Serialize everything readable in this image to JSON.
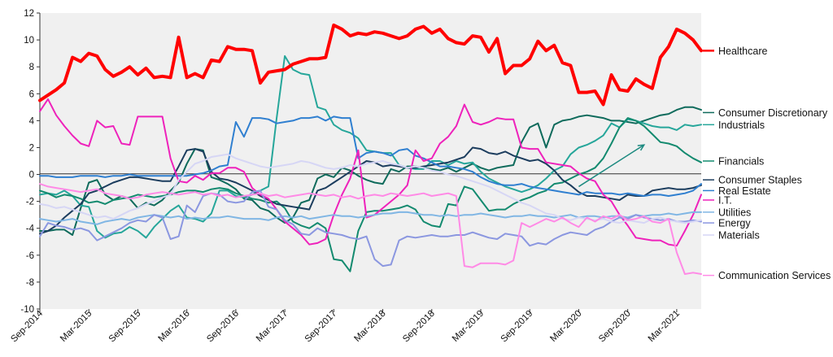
{
  "chart_data": {
    "type": "line",
    "title": "",
    "xlabel": "",
    "ylabel": "",
    "ylim": [
      -10,
      12
    ],
    "yticks": [
      -10,
      -8,
      -6,
      -4,
      -2,
      0,
      2,
      4,
      6,
      8,
      10,
      12
    ],
    "xtick_labels": [
      "Sep-2014",
      "Mar-2015",
      "Sep-2015",
      "Mar-2016",
      "Sep-2016",
      "Mar-2017",
      "Sep-2017",
      "Mar-2018",
      "Sep-2018",
      "Mar-2019",
      "Sep-2019",
      "Mar-2020",
      "Sep-2020",
      "Mar-2021"
    ],
    "x_start": "2014-09",
    "grid": false,
    "legend_position": "right",
    "background_color": "#f0f0f0",
    "annotation": {
      "type": "arrow",
      "from": [
        "2020-03",
        -0.9
      ],
      "to": [
        "2020-11",
        2.2
      ],
      "color": "#1d8a80"
    },
    "series": [
      {
        "name": "Healthcare",
        "color": "#ff0000",
        "width": 4,
        "label_y": 9.2,
        "values": [
          5.5,
          5.9,
          6.3,
          6.8,
          8.7,
          8.4,
          9.0,
          8.8,
          7.8,
          7.3,
          7.6,
          8.0,
          7.4,
          7.9,
          7.2,
          7.3,
          7.2,
          10.2,
          7.2,
          7.5,
          7.2,
          8.5,
          8.4,
          9.5,
          9.3,
          9.3,
          9.2,
          6.8,
          7.6,
          7.7,
          7.8,
          8.2,
          8.4,
          8.6,
          8.6,
          8.7,
          11.1,
          10.8,
          10.3,
          10.5,
          10.4,
          10.6,
          10.5,
          10.3,
          10.1,
          10.3,
          10.8,
          11.0,
          10.5,
          10.8,
          10.1,
          9.8,
          9.7,
          10.3,
          10.2,
          9.1,
          10.1,
          7.5,
          8.1,
          8.1,
          8.6,
          9.9,
          9.2,
          9.6,
          8.3,
          8.1,
          6.1,
          6.1,
          6.2,
          5.2,
          7.4,
          6.3,
          6.2,
          7.1,
          6.7,
          6.4,
          8.7,
          9.5,
          10.8,
          10.5,
          10.0,
          9.2
        ]
      },
      {
        "name": "Consumer Discretionary",
        "color": "#0f6b5c",
        "width": 2,
        "label_y": 4.6,
        "values": [
          -4.2,
          -4.2,
          -4.1,
          -4.1,
          -4.5,
          -2.5,
          -0.6,
          -0.4,
          -1.5,
          -1.9,
          -1.6,
          -1.8,
          -2.5,
          -2.1,
          -2.3,
          -1.9,
          -1.2,
          -0.6,
          0.8,
          1.9,
          1.8,
          -0.2,
          -0.4,
          -0.7,
          -1.1,
          -1.8,
          -1.9,
          -2.5,
          -2.7,
          -3.2,
          -3.6,
          -3.2,
          -2.1,
          -1.9,
          -0.3,
          0.0,
          -0.2,
          0.5,
          0.3,
          -0.1,
          -0.4,
          -0.6,
          -0.7,
          0.4,
          0.2,
          0.6,
          0.6,
          0.5,
          0.4,
          0.3,
          0.5,
          0.2,
          0.5,
          0.8,
          0.5,
          0.3,
          0.5,
          0.6,
          0.7,
          2.4,
          3.5,
          3.8,
          2.0,
          3.7,
          4.0,
          4.1,
          4.3,
          4.4,
          4.3,
          4.2,
          4.0,
          4.0,
          3.9,
          3.8,
          4.0,
          4.2,
          4.4,
          4.5,
          4.8,
          5.0,
          5.0,
          4.8
        ]
      },
      {
        "name": "Industrials",
        "color": "#26a69a",
        "width": 2,
        "label_y": 3.7,
        "values": [
          -1.5,
          -1.4,
          -1.5,
          -1.2,
          -1.6,
          -2.3,
          -2.4,
          -4.2,
          -4.7,
          -4.4,
          -4.3,
          -3.9,
          -4.2,
          -4.7,
          -3.9,
          -3.3,
          -2.7,
          -2.3,
          -3.2,
          -3.3,
          -3.5,
          -2.9,
          -1.2,
          -1.2,
          -1.6,
          -1.7,
          -1.5,
          -1.2,
          -0.9,
          4.2,
          8.8,
          7.8,
          7.5,
          7.4,
          5.0,
          4.8,
          3.7,
          3.3,
          3.1,
          2.7,
          1.8,
          1.7,
          1.6,
          1.6,
          0.7,
          0.5,
          0.4,
          0.4,
          1.0,
          1.0,
          0.7,
          1.0,
          0.8,
          0.9,
          0.2,
          -0.3,
          -0.6,
          -0.9,
          -1.1,
          -1.3,
          -1.1,
          -0.8,
          -0.3,
          0.3,
          0.6,
          1.5,
          2.0,
          2.2,
          2.5,
          2.9,
          3.8,
          3.5,
          4.1,
          4.0,
          3.8,
          3.6,
          3.5,
          3.5,
          3.3,
          3.7,
          3.6,
          3.7
        ]
      },
      {
        "name": "Financials",
        "color": "#138a6f",
        "width": 2,
        "label_y": 1.0,
        "values": [
          -1.2,
          -1.4,
          -1.7,
          -1.5,
          -1.6,
          -1.8,
          -2.1,
          -2.0,
          -2.2,
          -1.9,
          -1.8,
          -1.7,
          -1.5,
          -1.6,
          -1.7,
          -1.6,
          -1.5,
          -1.3,
          -1.2,
          -1.2,
          -1.3,
          -1.1,
          -1.0,
          -1.1,
          -1.4,
          -1.6,
          -1.8,
          -1.9,
          -2.1,
          -2.0,
          -2.5,
          -3.5,
          -3.8,
          -4.0,
          -3.6,
          -4.0,
          -6.3,
          -6.4,
          -7.2,
          -4.2,
          -2.8,
          -2.7,
          -2.7,
          -2.6,
          -2.5,
          -2.3,
          -2.6,
          -3.5,
          -3.8,
          -3.9,
          -2.2,
          -2.3,
          -0.9,
          -1.1,
          -1.9,
          -2.7,
          -2.6,
          -2.6,
          -2.2,
          -1.9,
          -1.7,
          -1.4,
          -1.2,
          -0.7,
          -0.6,
          -0.3,
          0.0,
          0.2,
          0.5,
          1.2,
          2.3,
          3.5,
          4.2,
          4.0,
          3.6,
          3.0,
          2.4,
          2.3,
          2.1,
          1.6,
          1.2,
          0.9
        ]
      },
      {
        "name": "Consumer Staples",
        "color": "#1c3d5e",
        "width": 2,
        "label_y": -0.4,
        "values": [
          -4.4,
          -4.2,
          -3.8,
          -3.2,
          -2.7,
          -2.2,
          -1.4,
          -1.2,
          -0.9,
          -0.6,
          -0.4,
          -0.2,
          -0.2,
          -0.3,
          -0.4,
          -0.5,
          -0.5,
          0.6,
          1.8,
          1.9,
          1.7,
          0.2,
          -0.3,
          -0.4,
          -0.6,
          -0.9,
          -1.2,
          -1.6,
          -1.9,
          -2.2,
          -2.3,
          -2.4,
          -2.5,
          -2.6,
          -1.2,
          -1.0,
          -0.6,
          -0.2,
          0.2,
          0.6,
          1.0,
          0.9,
          0.6,
          0.7,
          0.6,
          0.5,
          0.5,
          0.6,
          0.7,
          0.8,
          0.9,
          1.1,
          1.3,
          2.0,
          1.9,
          1.6,
          1.5,
          1.7,
          1.4,
          1.2,
          1.0,
          1.1,
          0.8,
          0.3,
          -0.4,
          -0.8,
          -1.3,
          -1.6,
          -1.6,
          -1.7,
          -1.8,
          -1.9,
          -1.5,
          -1.6,
          -1.6,
          -1.2,
          -1.1,
          -1.0,
          -1.1,
          -1.1,
          -1.0,
          -0.8
        ]
      },
      {
        "name": "Real Estate",
        "color": "#2f7fd0",
        "width": 2,
        "label_y": -1.2,
        "values": [
          -0.1,
          -0.1,
          -0.2,
          -0.2,
          -0.2,
          -0.1,
          -0.1,
          -0.1,
          -0.2,
          -0.1,
          -0.1,
          0.0,
          -0.1,
          -0.1,
          -0.1,
          -0.1,
          -0.1,
          -0.1,
          -0.1,
          0.0,
          0.1,
          0.3,
          0.6,
          0.7,
          3.9,
          2.8,
          4.2,
          4.2,
          4.1,
          3.8,
          3.9,
          4.0,
          4.2,
          4.2,
          4.3,
          4.0,
          4.3,
          4.2,
          4.2,
          1.2,
          1.6,
          1.7,
          1.6,
          1.4,
          1.8,
          1.9,
          1.4,
          1.2,
          0.9,
          0.6,
          0.6,
          0.5,
          0.4,
          0.2,
          -0.2,
          -0.5,
          -0.7,
          -0.8,
          -0.8,
          -0.7,
          -0.9,
          -1.0,
          -1.1,
          -1.2,
          -1.3,
          -1.4,
          -1.5,
          -1.3,
          -1.4,
          -1.4,
          -1.4,
          -1.5,
          -1.4,
          -1.5,
          -1.6,
          -1.5,
          -1.5,
          -1.6,
          -1.5,
          -1.4,
          -1.2,
          -0.7
        ]
      },
      {
        "name": "I.T.",
        "color": "#ee22bb",
        "width": 2,
        "label_y": -1.9,
        "values": [
          4.7,
          5.6,
          4.4,
          3.6,
          2.9,
          2.3,
          2.1,
          4.0,
          3.5,
          3.6,
          2.3,
          2.2,
          4.3,
          4.3,
          4.3,
          4.3,
          1.2,
          -0.5,
          -0.6,
          -0.1,
          -0.4,
          0.1,
          0.1,
          0.5,
          0.5,
          0.2,
          -1.0,
          -1.5,
          -1.8,
          -2.6,
          -3.5,
          -4.0,
          -4.5,
          -5.2,
          -5.1,
          -4.8,
          -3.0,
          -1.5,
          -0.3,
          1.8,
          -3.2,
          -3.0,
          -2.5,
          -2.0,
          -1.5,
          -0.8,
          1.8,
          1.0,
          1.2,
          2.3,
          2.8,
          3.6,
          5.2,
          3.9,
          3.7,
          3.9,
          4.2,
          4.1,
          4.1,
          2.0,
          1.9,
          1.9,
          0.9,
          0.8,
          0.7,
          0.6,
          0.1,
          -0.3,
          -0.5,
          -1.5,
          -2.0,
          -3.0,
          -3.8,
          -4.7,
          -4.8,
          -4.9,
          -4.9,
          -5.2,
          -5.3,
          -4.2,
          -3.0,
          -1.5
        ]
      },
      {
        "name": "Utilities",
        "color": "#80b6e4",
        "width": 2,
        "label_y": -2.8,
        "values": [
          -3.3,
          -3.4,
          -3.5,
          -3.4,
          -3.3,
          -3.5,
          -3.6,
          -3.7,
          -3.5,
          -3.4,
          -3.3,
          -3.4,
          -3.2,
          -3.1,
          -3.0,
          -3.1,
          -3.2,
          -3.1,
          -3.3,
          -3.2,
          -3.3,
          -3.2,
          -3.2,
          -3.1,
          -3.2,
          -3.3,
          -3.3,
          -3.3,
          -3.4,
          -3.2,
          -3.1,
          -3.2,
          -3.1,
          -3.3,
          -3.2,
          -3.1,
          -3.0,
          -3.1,
          -3.1,
          -3.2,
          -3.1,
          -3.0,
          -2.9,
          -2.9,
          -2.8,
          -2.8,
          -2.9,
          -3.0,
          -3.0,
          -3.1,
          -3.0,
          -3.1,
          -3.0,
          -3.0,
          -2.9,
          -3.0,
          -3.1,
          -3.2,
          -3.1,
          -3.1,
          -3.0,
          -3.1,
          -3.1,
          -3.2,
          -3.1,
          -3.0,
          -3.2,
          -3.1,
          -3.1,
          -3.2,
          -3.1,
          -3.1,
          -3.2,
          -3.0,
          -3.1,
          -3.0,
          -3.0,
          -2.9,
          -3.0,
          -2.9,
          -2.8,
          -2.8
        ]
      },
      {
        "name": "Energy",
        "color": "#8b97e0",
        "width": 2,
        "label_y": -3.6,
        "values": [
          -4.6,
          -3.6,
          -3.8,
          -3.9,
          -4.1,
          -4.0,
          -4.2,
          -4.9,
          -4.6,
          -4.3,
          -4.0,
          -3.6,
          -3.4,
          -3.5,
          -3.0,
          -3.2,
          -4.8,
          -4.6,
          -2.3,
          -2.8,
          -1.6,
          -1.4,
          -1.5,
          -2.0,
          -2.1,
          -2.0,
          -1.3,
          -1.2,
          -2.4,
          -2.6,
          -3.4,
          -3.7,
          -4.4,
          -4.5,
          -4.0,
          -4.3,
          -4.4,
          -4.5,
          -4.7,
          -4.8,
          -4.6,
          -6.3,
          -6.8,
          -6.7,
          -4.9,
          -4.6,
          -4.7,
          -4.6,
          -4.5,
          -4.6,
          -4.6,
          -4.5,
          -4.5,
          -4.3,
          -4.5,
          -4.7,
          -4.8,
          -4.4,
          -4.5,
          -4.6,
          -5.3,
          -5.1,
          -5.2,
          -4.8,
          -4.5,
          -4.3,
          -4.4,
          -4.5,
          -4.1,
          -3.9,
          -3.5,
          -3.2,
          -3.3,
          -3.0,
          -3.2,
          -3.3,
          -3.4,
          -3.3,
          -3.5,
          -3.5,
          -3.4,
          -3.5
        ]
      },
      {
        "name": "Materials",
        "color": "#d6d6f5",
        "width": 2,
        "label_y": -4.5,
        "values": [
          -2.2,
          -2.3,
          -2.5,
          -2.4,
          -2.6,
          -2.8,
          -3.0,
          -3.2,
          -3.1,
          -3.3,
          -3.0,
          -2.7,
          -2.5,
          -2.2,
          -2.0,
          -1.7,
          -1.5,
          -0.4,
          0.2,
          0.8,
          1.0,
          1.3,
          1.4,
          1.5,
          1.2,
          1.0,
          0.8,
          0.6,
          0.5,
          0.6,
          0.7,
          0.8,
          1.0,
          0.9,
          0.7,
          0.5,
          0.4,
          0.5,
          0.7,
          0.6,
          0.8,
          0.9,
          1.0,
          0.8,
          0.7,
          0.5,
          0.6,
          0.5,
          0.3,
          0.2,
          0.0,
          -0.1,
          -0.3,
          -0.5,
          -0.7,
          -0.9,
          -1.2,
          -1.5,
          -1.8,
          -2.1,
          -2.3,
          -2.6,
          -2.9,
          -3.0,
          -3.3,
          -3.4,
          -3.2,
          -3.3,
          -3.4,
          -3.3,
          -3.5,
          -3.6,
          -3.4,
          -3.5,
          -3.6,
          -3.3,
          -3.2,
          -3.4,
          -3.5,
          -3.6,
          -3.5,
          -3.4
        ]
      },
      {
        "name": "Communication Services",
        "color": "#ff8ae6",
        "width": 2,
        "label_y": -7.5,
        "values": [
          -0.7,
          -0.9,
          -1.0,
          -1.1,
          -1.2,
          -1.3,
          -1.2,
          -1.1,
          -1.4,
          -1.5,
          -1.6,
          -1.8,
          -1.7,
          -1.5,
          -1.4,
          -1.3,
          -1.4,
          -1.5,
          -1.4,
          -1.3,
          -1.5,
          -1.4,
          -1.6,
          -1.5,
          -1.7,
          -1.6,
          -1.5,
          -1.4,
          -1.6,
          -1.5,
          -1.7,
          -1.6,
          -1.5,
          -1.4,
          -1.5,
          -1.6,
          -1.5,
          -1.7,
          -1.6,
          -1.8,
          -1.6,
          -1.5,
          -1.6,
          -1.4,
          -1.5,
          -1.6,
          -1.5,
          -1.4,
          -1.6,
          -1.5,
          -1.4,
          -1.6,
          -6.8,
          -6.9,
          -6.6,
          -6.6,
          -6.6,
          -6.7,
          -6.4,
          -3.6,
          -3.9,
          -3.6,
          -3.3,
          -3.5,
          -3.2,
          -3.6,
          -3.9,
          -3.2,
          -3.5,
          -3.1,
          -3.3,
          -3.0,
          -3.4,
          -3.3,
          -3.1,
          -3.5,
          -3.6,
          -3.3,
          -5.8,
          -7.4,
          -7.3,
          -7.4
        ]
      }
    ]
  }
}
